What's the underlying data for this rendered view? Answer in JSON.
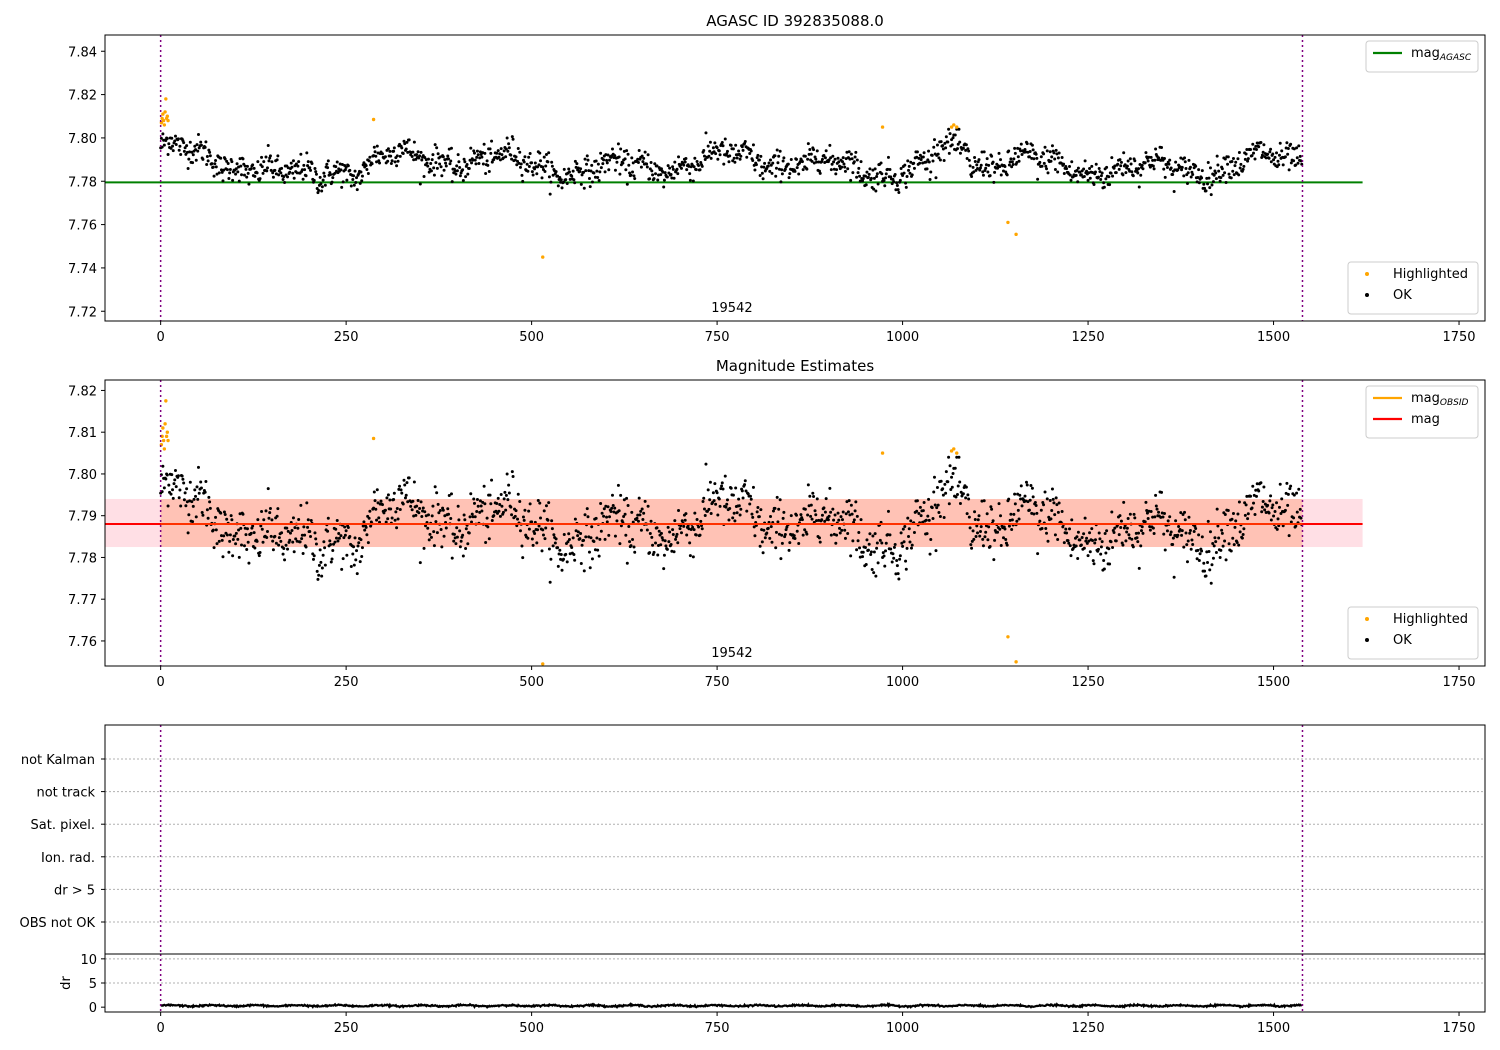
{
  "colors": {
    "ok": "#000000",
    "highlighted": "#ffa500",
    "mag_agasc": "#008000",
    "mag_obsid": "#ffa500",
    "mag": "#ff0000",
    "obs_boundary": "#800080",
    "band_all": "#ffc0cb",
    "band_obsid": "#ffa07a"
  },
  "chart_data": [
    {
      "type": "scatter",
      "title": "AGASC ID 392835088.0",
      "xlim": [
        -75,
        1785
      ],
      "ylim": [
        7.7155,
        7.8475
      ],
      "xticks": [
        0,
        250,
        500,
        750,
        1000,
        1250,
        1500,
        1750
      ],
      "yticks": [
        7.72,
        7.74,
        7.76,
        7.78,
        7.8,
        7.82,
        7.84
      ],
      "obsid_label": "19542",
      "obs_boundaries": [
        0,
        1539
      ],
      "mag_agasc": 7.7795,
      "series_ok_summary": {
        "n_points": 1539,
        "x_range": [
          0,
          1539
        ],
        "approx_center": 7.788,
        "approx_range": [
          7.772,
          7.804
        ]
      },
      "series_highlighted": [
        {
          "x": 1,
          "y": 7.807
        },
        {
          "x": 2,
          "y": 7.809
        },
        {
          "x": 3,
          "y": 7.811
        },
        {
          "x": 4,
          "y": 7.808
        },
        {
          "x": 5,
          "y": 7.806
        },
        {
          "x": 6,
          "y": 7.812
        },
        {
          "x": 7,
          "y": 7.818
        },
        {
          "x": 8,
          "y": 7.809
        },
        {
          "x": 9,
          "y": 7.81
        },
        {
          "x": 10,
          "y": 7.808
        },
        {
          "x": 287,
          "y": 7.8085
        },
        {
          "x": 515,
          "y": 7.745
        },
        {
          "x": 973,
          "y": 7.805
        },
        {
          "x": 1066,
          "y": 7.805
        },
        {
          "x": 1069,
          "y": 7.806
        },
        {
          "x": 1073,
          "y": 7.805
        },
        {
          "x": 1142,
          "y": 7.761
        },
        {
          "x": 1153,
          "y": 7.7555
        }
      ],
      "legends": [
        {
          "position": "top-right",
          "entries": [
            {
              "label": "mag",
              "sub": "AGASC",
              "kind": "line",
              "color_key": "mag_agasc"
            }
          ]
        },
        {
          "position": "bottom-right",
          "entries": [
            {
              "label": "Highlighted",
              "kind": "marker",
              "color_key": "highlighted"
            },
            {
              "label": "OK",
              "kind": "marker",
              "color_key": "ok"
            }
          ]
        }
      ]
    },
    {
      "type": "scatter",
      "title": "Magnitude Estimates",
      "xlim": [
        -75,
        1785
      ],
      "ylim": [
        7.754,
        7.8225
      ],
      "xticks": [
        0,
        250,
        500,
        750,
        1000,
        1250,
        1500,
        1750
      ],
      "yticks": [
        7.76,
        7.77,
        7.78,
        7.79,
        7.8,
        7.81,
        7.82
      ],
      "obsid_label": "19542",
      "obs_boundaries": [
        0,
        1539
      ],
      "mag": 7.788,
      "band": [
        7.7825,
        7.794
      ],
      "series_ok_summary": {
        "n_points": 1539,
        "x_range": [
          0,
          1539
        ],
        "approx_center": 7.788,
        "approx_range": [
          7.772,
          7.804
        ]
      },
      "series_highlighted": [
        {
          "x": 1,
          "y": 7.807
        },
        {
          "x": 2,
          "y": 7.809
        },
        {
          "x": 3,
          "y": 7.811
        },
        {
          "x": 4,
          "y": 7.808
        },
        {
          "x": 5,
          "y": 7.806
        },
        {
          "x": 6,
          "y": 7.812
        },
        {
          "x": 7,
          "y": 7.8175
        },
        {
          "x": 8,
          "y": 7.809
        },
        {
          "x": 9,
          "y": 7.81
        },
        {
          "x": 10,
          "y": 7.808
        },
        {
          "x": 287,
          "y": 7.8085
        },
        {
          "x": 515,
          "y": 7.7545
        },
        {
          "x": 973,
          "y": 7.805
        },
        {
          "x": 1066,
          "y": 7.8055
        },
        {
          "x": 1069,
          "y": 7.806
        },
        {
          "x": 1073,
          "y": 7.805
        },
        {
          "x": 1142,
          "y": 7.761
        },
        {
          "x": 1153,
          "y": 7.755
        }
      ],
      "legends": [
        {
          "position": "top-right",
          "entries": [
            {
              "label": "mag",
              "sub": "OBSID",
              "kind": "line",
              "color_key": "mag_obsid"
            },
            {
              "label": "mag",
              "kind": "line",
              "color_key": "mag"
            }
          ]
        },
        {
          "position": "bottom-right",
          "entries": [
            {
              "label": "Highlighted",
              "kind": "marker",
              "color_key": "highlighted"
            },
            {
              "label": "OK",
              "kind": "marker",
              "color_key": "ok"
            }
          ]
        }
      ]
    },
    {
      "type": "flags",
      "xlim": [
        -75,
        1785
      ],
      "categories": [
        "not Kalman",
        "not track",
        "Sat. pixel.",
        "Ion. rad.",
        "dr > 5",
        "OBS not OK"
      ],
      "obs_boundaries": [
        0,
        1539
      ]
    },
    {
      "type": "line",
      "xlim": [
        -75,
        1785
      ],
      "ylim": [
        -1,
        11
      ],
      "yticks": [
        0,
        5,
        10
      ],
      "ylabel": "dr",
      "xticks": [
        0,
        250,
        500,
        750,
        1000,
        1250,
        1500,
        1750
      ],
      "obs_boundaries": [
        0,
        1539
      ],
      "dr_summary": {
        "n_points": 1539,
        "approx_mean": 0.3,
        "approx_max": 0.7
      }
    }
  ]
}
